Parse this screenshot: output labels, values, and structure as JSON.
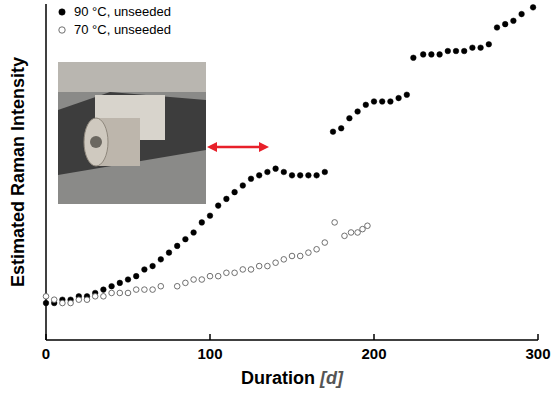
{
  "chart_data": {
    "type": "scatter",
    "x_label": "Duration [d]",
    "y_label": "Estimated Raman Intensity",
    "xlim": [
      0,
      300
    ],
    "xticks": [
      0,
      100,
      200,
      300
    ],
    "ylim": [
      0,
      1
    ],
    "yticks": [],
    "tick_labels": "x",
    "grid": false,
    "legend": "upper left",
    "series": [
      {
        "name": "90 °C, unseeded",
        "color": "#000000",
        "marker": "filled",
        "x": [
          0,
          5,
          10,
          15,
          20,
          25,
          30,
          35,
          40,
          45,
          50,
          55,
          60,
          65,
          70,
          75,
          80,
          85,
          90,
          95,
          100,
          105,
          110,
          115,
          120,
          125,
          130,
          135,
          140,
          145,
          150,
          155,
          160,
          165,
          170,
          175,
          180,
          185,
          190,
          195,
          200,
          205,
          210,
          215,
          220,
          224,
          230,
          235,
          240,
          245,
          250,
          255,
          260,
          265,
          270,
          275,
          280,
          285,
          290,
          297
        ],
        "values": [
          0.11,
          0.11,
          0.12,
          0.12,
          0.13,
          0.13,
          0.14,
          0.15,
          0.16,
          0.17,
          0.18,
          0.19,
          0.21,
          0.22,
          0.24,
          0.26,
          0.28,
          0.3,
          0.32,
          0.35,
          0.37,
          0.4,
          0.42,
          0.44,
          0.46,
          0.48,
          0.49,
          0.5,
          0.51,
          0.5,
          0.49,
          0.49,
          0.49,
          0.49,
          0.5,
          0.62,
          0.63,
          0.66,
          0.68,
          0.7,
          0.71,
          0.71,
          0.71,
          0.72,
          0.73,
          0.84,
          0.85,
          0.85,
          0.85,
          0.86,
          0.86,
          0.86,
          0.87,
          0.87,
          0.88,
          0.93,
          0.94,
          0.95,
          0.97,
          0.99
        ]
      },
      {
        "name": "70 °C, unseeded",
        "color": "#606060",
        "marker": "hollow",
        "x": [
          0,
          5,
          10,
          15,
          20,
          25,
          30,
          35,
          40,
          45,
          50,
          55,
          60,
          65,
          70,
          80,
          85,
          90,
          95,
          100,
          105,
          110,
          115,
          120,
          125,
          130,
          135,
          140,
          145,
          150,
          155,
          160,
          165,
          170,
          176,
          182,
          186,
          190,
          193,
          196
        ],
        "values": [
          0.13,
          0.12,
          0.11,
          0.11,
          0.12,
          0.12,
          0.13,
          0.13,
          0.14,
          0.14,
          0.14,
          0.15,
          0.15,
          0.15,
          0.16,
          0.16,
          0.17,
          0.18,
          0.18,
          0.19,
          0.19,
          0.2,
          0.2,
          0.21,
          0.21,
          0.22,
          0.22,
          0.23,
          0.24,
          0.25,
          0.25,
          0.26,
          0.27,
          0.29,
          0.35,
          0.31,
          0.32,
          0.32,
          0.33,
          0.34
        ]
      }
    ]
  }
}
